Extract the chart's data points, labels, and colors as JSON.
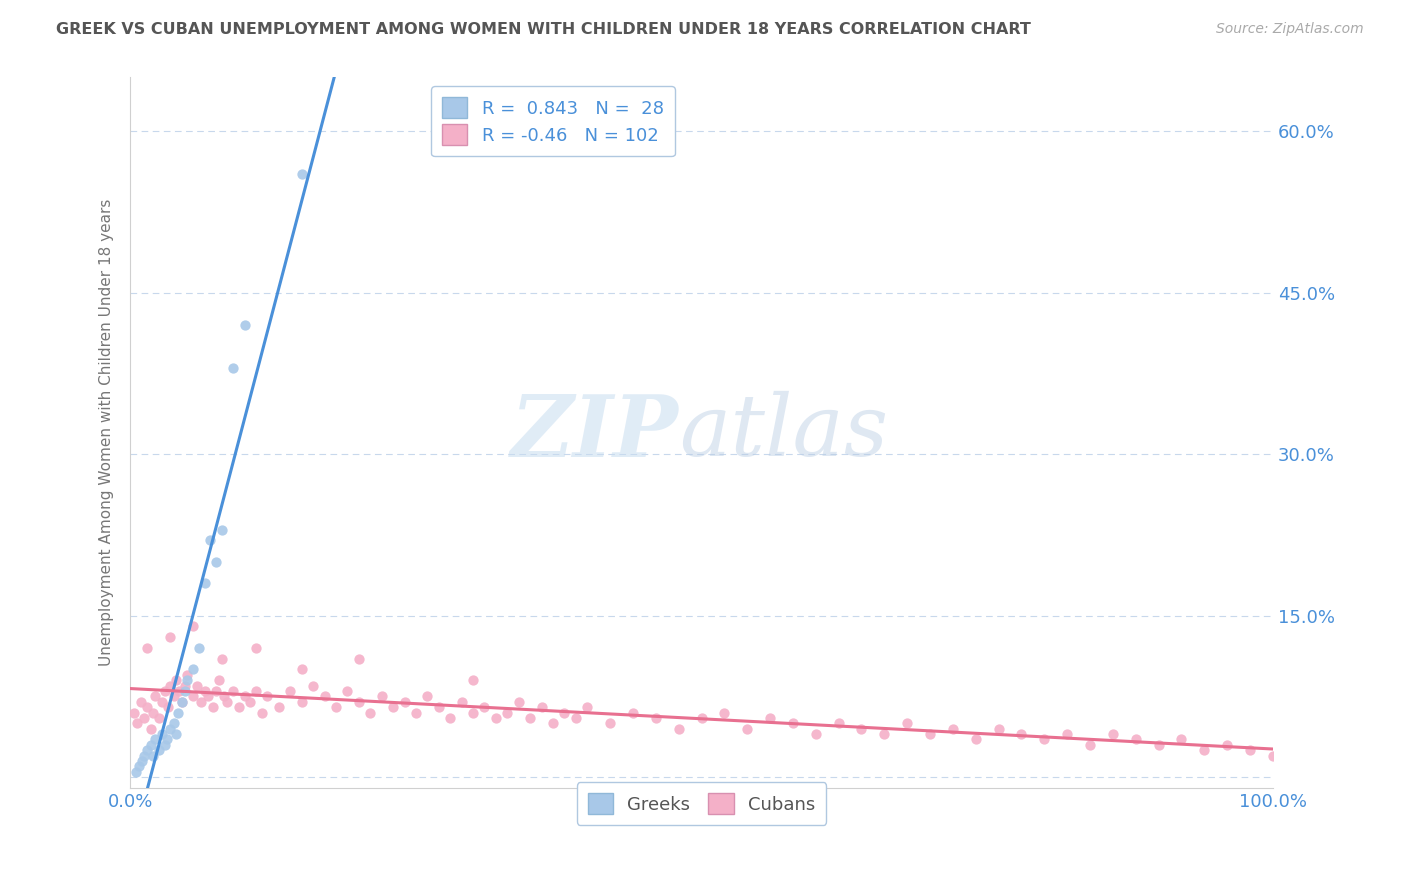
{
  "title": "GREEK VS CUBAN UNEMPLOYMENT AMONG WOMEN WITH CHILDREN UNDER 18 YEARS CORRELATION CHART",
  "source": "Source: ZipAtlas.com",
  "ylabel": "Unemployment Among Women with Children Under 18 years",
  "xlim": [
    0.0,
    1.0
  ],
  "ylim": [
    -0.01,
    0.65
  ],
  "greek_R": 0.843,
  "greek_N": 28,
  "cuban_R": -0.46,
  "cuban_N": 102,
  "greek_color": "#a8c8e8",
  "cuban_color": "#f4b0c8",
  "greek_line_color": "#4a90d9",
  "cuban_line_color": "#e87090",
  "watermark_zip": "ZIP",
  "watermark_atlas": "atlas",
  "background_color": "#ffffff",
  "grid_color": "#c8d8ec",
  "title_color": "#555555",
  "axis_label_color": "#4a90d9",
  "greek_x": [
    0.005,
    0.008,
    0.01,
    0.012,
    0.015,
    0.018,
    0.02,
    0.022,
    0.025,
    0.028,
    0.03,
    0.032,
    0.035,
    0.038,
    0.04,
    0.042,
    0.045,
    0.048,
    0.05,
    0.055,
    0.06,
    0.065,
    0.07,
    0.075,
    0.08,
    0.09,
    0.1,
    0.15
  ],
  "greek_y": [
    0.005,
    0.01,
    0.015,
    0.02,
    0.025,
    0.03,
    0.02,
    0.035,
    0.025,
    0.04,
    0.03,
    0.035,
    0.045,
    0.05,
    0.04,
    0.06,
    0.07,
    0.08,
    0.09,
    0.1,
    0.12,
    0.18,
    0.22,
    0.2,
    0.23,
    0.38,
    0.42,
    0.56
  ],
  "cuban_x": [
    0.003,
    0.006,
    0.009,
    0.012,
    0.015,
    0.018,
    0.02,
    0.022,
    0.025,
    0.028,
    0.03,
    0.033,
    0.035,
    0.038,
    0.04,
    0.043,
    0.045,
    0.048,
    0.05,
    0.055,
    0.058,
    0.062,
    0.065,
    0.068,
    0.072,
    0.075,
    0.078,
    0.082,
    0.085,
    0.09,
    0.095,
    0.1,
    0.105,
    0.11,
    0.115,
    0.12,
    0.13,
    0.14,
    0.15,
    0.16,
    0.17,
    0.18,
    0.19,
    0.2,
    0.21,
    0.22,
    0.23,
    0.24,
    0.25,
    0.26,
    0.27,
    0.28,
    0.29,
    0.3,
    0.31,
    0.32,
    0.33,
    0.34,
    0.35,
    0.36,
    0.37,
    0.38,
    0.39,
    0.4,
    0.42,
    0.44,
    0.46,
    0.48,
    0.5,
    0.52,
    0.54,
    0.56,
    0.58,
    0.6,
    0.62,
    0.64,
    0.66,
    0.68,
    0.7,
    0.72,
    0.74,
    0.76,
    0.78,
    0.8,
    0.82,
    0.84,
    0.86,
    0.88,
    0.9,
    0.92,
    0.94,
    0.96,
    0.98,
    1.0,
    0.015,
    0.035,
    0.055,
    0.08,
    0.11,
    0.15,
    0.2,
    0.3
  ],
  "cuban_y": [
    0.06,
    0.05,
    0.07,
    0.055,
    0.065,
    0.045,
    0.06,
    0.075,
    0.055,
    0.07,
    0.08,
    0.065,
    0.085,
    0.075,
    0.09,
    0.08,
    0.07,
    0.085,
    0.095,
    0.075,
    0.085,
    0.07,
    0.08,
    0.075,
    0.065,
    0.08,
    0.09,
    0.075,
    0.07,
    0.08,
    0.065,
    0.075,
    0.07,
    0.08,
    0.06,
    0.075,
    0.065,
    0.08,
    0.07,
    0.085,
    0.075,
    0.065,
    0.08,
    0.07,
    0.06,
    0.075,
    0.065,
    0.07,
    0.06,
    0.075,
    0.065,
    0.055,
    0.07,
    0.06,
    0.065,
    0.055,
    0.06,
    0.07,
    0.055,
    0.065,
    0.05,
    0.06,
    0.055,
    0.065,
    0.05,
    0.06,
    0.055,
    0.045,
    0.055,
    0.06,
    0.045,
    0.055,
    0.05,
    0.04,
    0.05,
    0.045,
    0.04,
    0.05,
    0.04,
    0.045,
    0.035,
    0.045,
    0.04,
    0.035,
    0.04,
    0.03,
    0.04,
    0.035,
    0.03,
    0.035,
    0.025,
    0.03,
    0.025,
    0.02,
    0.12,
    0.13,
    0.14,
    0.11,
    0.12,
    0.1,
    0.11,
    0.09
  ]
}
